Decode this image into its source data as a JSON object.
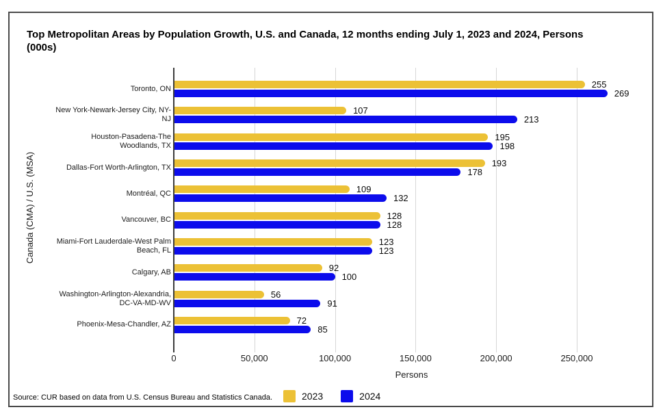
{
  "chart_data": {
    "type": "bar",
    "orientation": "horizontal",
    "title": "Top Metropolitan Areas by Population Growth, U.S. and Canada, 12 months ending July 1, 2023 and 2024, Persons (000s)",
    "xlabel": "Persons",
    "ylabel": "Canada (CMA) / U.S. (MSA)",
    "values_unit": "thousands of persons",
    "categories": [
      "Toronto, ON",
      "New York-Newark-Jersey City, NY-NJ",
      "Houston-Pasadena-The Woodlands, TX",
      "Dallas-Fort Worth-Arlington, TX",
      "Montréal, QC",
      "Vancouver, BC",
      "Miami-Fort Lauderdale-West Palm Beach, FL",
      "Calgary, AB",
      "Washington-Arlington-Alexandria, DC-VA-MD-WV",
      "Phoenix-Mesa-Chandler, AZ"
    ],
    "series": [
      {
        "name": "2023",
        "color": "#ECC136",
        "values": [
          255,
          107,
          195,
          193,
          109,
          128,
          123,
          92,
          56,
          72
        ]
      },
      {
        "name": "2024",
        "color": "#0C0CEC",
        "values": [
          269,
          213,
          198,
          178,
          132,
          128,
          123,
          100,
          91,
          85
        ]
      }
    ],
    "xlim": [
      0,
      295000
    ],
    "xticks": [
      0,
      50000,
      100000,
      150000,
      200000,
      250000
    ],
    "xtick_labels": [
      "0",
      "50,000",
      "100,000",
      "150,000",
      "200,000",
      "250,000"
    ],
    "grid": "vertical",
    "legend_position": "bottom"
  },
  "footer": {
    "source": "Source: CUR based on data from U.S. Census Bureau and Statistics Canada."
  }
}
